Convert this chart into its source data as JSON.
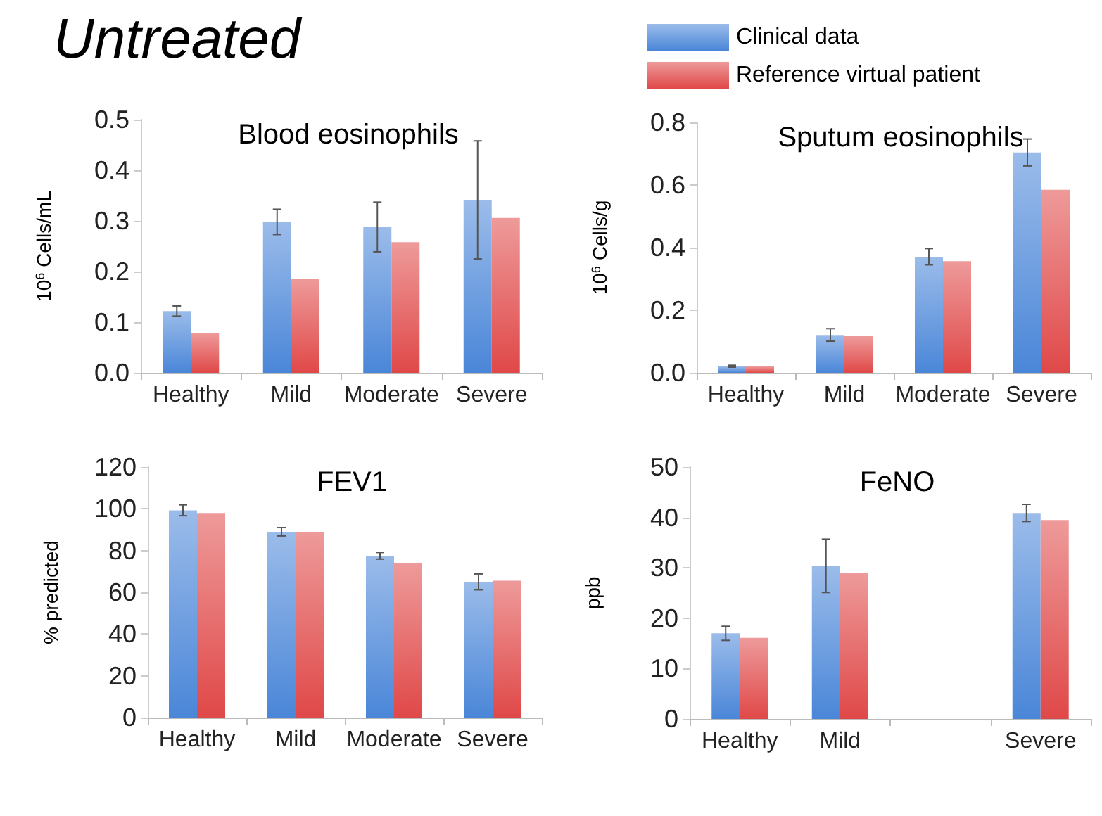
{
  "chart_data": [
    {
      "type": "other",
      "title": "Untreated"
    },
    {
      "type": "bar",
      "title": "Blood eosinophils",
      "ylabel": "10$^{6}$ Cells/mL",
      "categories": [
        "Healthy",
        "Mild",
        "Moderate",
        "Severe"
      ],
      "series": [
        {
          "color": "#4a86d8",
          "values": [
            0.122,
            0.298,
            0.288,
            0.341
          ],
          "errors": [
            0.01,
            0.025,
            0.049,
            [
              0.225,
              0.458
            ]
          ]
        },
        {
          "color": "#e04848",
          "values": [
            0.079,
            0.186,
            0.258,
            0.306
          ]
        }
      ],
      "ylim": [
        0,
        0.5
      ],
      "yticks": [
        {
          "value": 0,
          "label": "0.0"
        },
        0.1,
        0.2,
        0.3,
        0.4,
        0.5
      ],
      "grid": false,
      "legend": false
    },
    {
      "type": "bar",
      "title": "Sputum eosinophils",
      "ylabel": "10$^{6}$ Cells/g",
      "categories": [
        "Healthy",
        "Mild",
        "Moderate",
        "Severe"
      ],
      "series": [
        {
          "name": "Clinical data",
          "color": "#4a86d8",
          "values": [
            0.021,
            0.121,
            0.371,
            0.704
          ],
          "errors": [
            0.003,
            0.02,
            0.026,
            0.043
          ]
        },
        {
          "name": "Reference virtual patient",
          "color": "#e04848",
          "values": [
            0.02,
            0.117,
            0.357,
            0.585
          ]
        }
      ],
      "ylim": [
        0,
        0.8
      ],
      "yticks": [
        {
          "value": 0,
          "label": "0.0"
        },
        0.2,
        0.4,
        0.6,
        0.8
      ],
      "grid": false,
      "legend": "top"
    },
    {
      "type": "bar",
      "title": "FEV1",
      "ylabel": "% predicted",
      "categories": [
        "Healthy",
        "Mild",
        "Moderate",
        "Severe"
      ],
      "series": [
        {
          "color": "#4a86d8",
          "values": [
            99.3,
            89,
            77.5,
            65
          ],
          "errors": [
            2.6,
            2,
            1.6,
            3.8
          ]
        },
        {
          "color": "#e04848",
          "values": [
            98,
            89,
            74,
            65.6
          ]
        }
      ],
      "ylim": [
        0,
        120
      ],
      "yticks": [
        0,
        20,
        40,
        60,
        80,
        100,
        120
      ],
      "grid": false,
      "legend": false
    },
    {
      "type": "bar",
      "title": "FeNO",
      "ylabel": "ppb",
      "categories": [
        "Healthy",
        "Mild",
        null,
        "Severe"
      ],
      "series": [
        {
          "color": "#4a86d8",
          "values": [
            17,
            30.4,
            null,
            40.9
          ],
          "errors": [
            1.4,
            5.3,
            null,
            1.7
          ]
        },
        {
          "color": "#e04848",
          "values": [
            16.1,
            29,
            null,
            39.5
          ]
        }
      ],
      "ylim": [
        0,
        50
      ],
      "yticks": [
        0,
        10,
        20,
        30,
        40,
        50
      ],
      "grid": false,
      "legend": false
    }
  ]
}
